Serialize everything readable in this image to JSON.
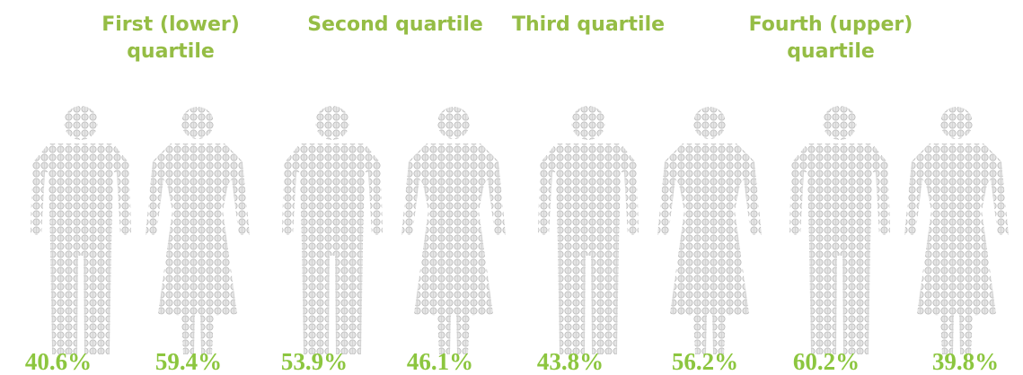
{
  "quartiles": [
    {
      "title": [
        "First (lower)",
        "quartile"
      ],
      "male": "40.6%",
      "female": "59.4%"
    },
    {
      "title": [
        "Second quartile"
      ],
      "male": "53.9%",
      "female": "46.1%"
    },
    {
      "title": [
        "Third quartile"
      ],
      "male": "43.8%",
      "female": "56.2%"
    },
    {
      "title": [
        "Fourth (upper)",
        "quartile"
      ],
      "male": "60.2%",
      "female": "39.8%"
    }
  ]
}
